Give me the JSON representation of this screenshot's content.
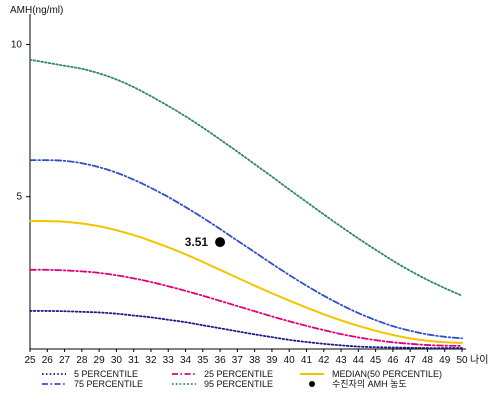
{
  "chart_data": {
    "type": "line",
    "ylabel": "AMH(ng/ml)",
    "xlabel": "나이",
    "x": [
      25,
      26,
      27,
      28,
      29,
      30,
      31,
      32,
      33,
      34,
      35,
      36,
      37,
      38,
      39,
      40,
      41,
      42,
      43,
      44,
      45,
      46,
      47,
      48,
      49,
      50
    ],
    "xlim": [
      25,
      50
    ],
    "ylim": [
      0,
      11
    ],
    "yticks": [
      5,
      10
    ],
    "grid": false,
    "legend_position": "bottom",
    "series": [
      {
        "name": "5 PERCENTILE",
        "color": "#1a1a8c",
        "style": "dotted",
        "values": [
          1.25,
          1.25,
          1.24,
          1.22,
          1.2,
          1.16,
          1.1,
          1.04,
          0.96,
          0.88,
          0.78,
          0.68,
          0.58,
          0.48,
          0.39,
          0.3,
          0.23,
          0.17,
          0.12,
          0.08,
          0.06,
          0.05,
          0.04,
          0.03,
          0.03,
          0.03
        ]
      },
      {
        "name": "25 PERCENTILE",
        "color": "#e0007a",
        "style": "dashdot",
        "values": [
          2.6,
          2.6,
          2.58,
          2.55,
          2.5,
          2.42,
          2.32,
          2.2,
          2.06,
          1.91,
          1.75,
          1.58,
          1.41,
          1.24,
          1.07,
          0.91,
          0.76,
          0.62,
          0.49,
          0.38,
          0.29,
          0.22,
          0.17,
          0.13,
          0.11,
          0.1
        ]
      },
      {
        "name": "MEDIAN(50 PERCENTILE)",
        "color": "#f2c500",
        "style": "solid",
        "values": [
          4.2,
          4.2,
          4.18,
          4.12,
          4.03,
          3.9,
          3.74,
          3.55,
          3.34,
          3.11,
          2.86,
          2.6,
          2.34,
          2.08,
          1.83,
          1.59,
          1.36,
          1.14,
          0.94,
          0.76,
          0.6,
          0.46,
          0.35,
          0.27,
          0.22,
          0.2
        ]
      },
      {
        "name": "75 PERCENTILE",
        "color": "#2f50c8",
        "style": "dashdot",
        "values": [
          6.2,
          6.2,
          6.18,
          6.1,
          5.97,
          5.79,
          5.56,
          5.29,
          4.99,
          4.66,
          4.31,
          3.94,
          3.56,
          3.18,
          2.8,
          2.43,
          2.08,
          1.75,
          1.45,
          1.18,
          0.95,
          0.75,
          0.6,
          0.48,
          0.4,
          0.35
        ]
      },
      {
        "name": "95 PERCENTILE",
        "color": "#2e8a57",
        "style": "dotted",
        "values": [
          9.5,
          9.4,
          9.3,
          9.2,
          9.05,
          8.85,
          8.6,
          8.3,
          7.98,
          7.64,
          7.27,
          6.88,
          6.48,
          6.07,
          5.66,
          5.24,
          4.83,
          4.42,
          4.02,
          3.63,
          3.26,
          2.9,
          2.57,
          2.27,
          2.0,
          1.75
        ]
      }
    ],
    "point": {
      "name": "수진자의 AMH 농도",
      "x": 36,
      "y": 3.51,
      "label": "3.51",
      "color": "#000000"
    }
  }
}
